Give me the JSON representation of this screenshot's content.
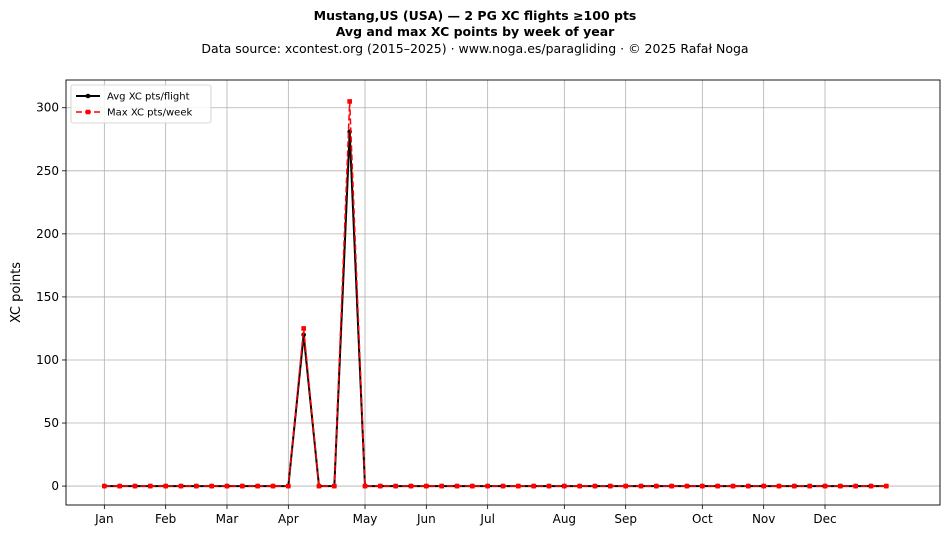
{
  "title": {
    "line1": "Mustang,US (USA)  —  2 PG XC flights ≥100 pts",
    "line2": "Avg and max XC points by week of year",
    "line3": "Data source: xcontest.org (2015–2025)  ·  www.noga.es/paragliding  ·  © 2025 Rafał Noga"
  },
  "chart_data": {
    "type": "line",
    "ylabel": "XC points",
    "xlabel": "",
    "x_unit": "week of year",
    "xlim": [
      -2.5,
      54.5
    ],
    "ylim": [
      -15,
      322
    ],
    "yticks": [
      0,
      50,
      100,
      150,
      200,
      250,
      300
    ],
    "grid": true,
    "legend_position": "upper-left",
    "month_ticks": [
      {
        "label": "Jan",
        "week": 0
      },
      {
        "label": "Feb",
        "week": 4
      },
      {
        "label": "Mar",
        "week": 8
      },
      {
        "label": "Apr",
        "week": 12
      },
      {
        "label": "May",
        "week": 17
      },
      {
        "label": "Jun",
        "week": 21
      },
      {
        "label": "Jul",
        "week": 25
      },
      {
        "label": "Aug",
        "week": 30
      },
      {
        "label": "Sep",
        "week": 34
      },
      {
        "label": "Oct",
        "week": 39
      },
      {
        "label": "Nov",
        "week": 43
      },
      {
        "label": "Dec",
        "week": 47
      }
    ],
    "x": [
      0,
      1,
      2,
      3,
      4,
      5,
      6,
      7,
      8,
      9,
      10,
      11,
      12,
      13,
      14,
      15,
      16,
      17,
      18,
      19,
      20,
      21,
      22,
      23,
      24,
      25,
      26,
      27,
      28,
      29,
      30,
      31,
      32,
      33,
      34,
      35,
      36,
      37,
      38,
      39,
      40,
      41,
      42,
      43,
      44,
      45,
      46,
      47,
      48,
      49,
      50,
      51
    ],
    "series": [
      {
        "name": "Avg XC pts/flight",
        "color": "#000000",
        "style": "solid",
        "marker": "circle",
        "values": [
          0,
          0,
          0,
          0,
          0,
          0,
          0,
          0,
          0,
          0,
          0,
          0,
          0,
          120,
          0,
          0,
          281,
          0,
          0,
          0,
          0,
          0,
          0,
          0,
          0,
          0,
          0,
          0,
          0,
          0,
          0,
          0,
          0,
          0,
          0,
          0,
          0,
          0,
          0,
          0,
          0,
          0,
          0,
          0,
          0,
          0,
          0,
          0,
          0,
          0,
          0,
          0
        ]
      },
      {
        "name": "Max XC pts/week",
        "color": "#ff0000",
        "style": "dashed",
        "marker": "square",
        "values": [
          0,
          0,
          0,
          0,
          0,
          0,
          0,
          0,
          0,
          0,
          0,
          0,
          0,
          125,
          0,
          0,
          305,
          0,
          0,
          0,
          0,
          0,
          0,
          0,
          0,
          0,
          0,
          0,
          0,
          0,
          0,
          0,
          0,
          0,
          0,
          0,
          0,
          0,
          0,
          0,
          0,
          0,
          0,
          0,
          0,
          0,
          0,
          0,
          0,
          0,
          0,
          0
        ]
      }
    ]
  }
}
